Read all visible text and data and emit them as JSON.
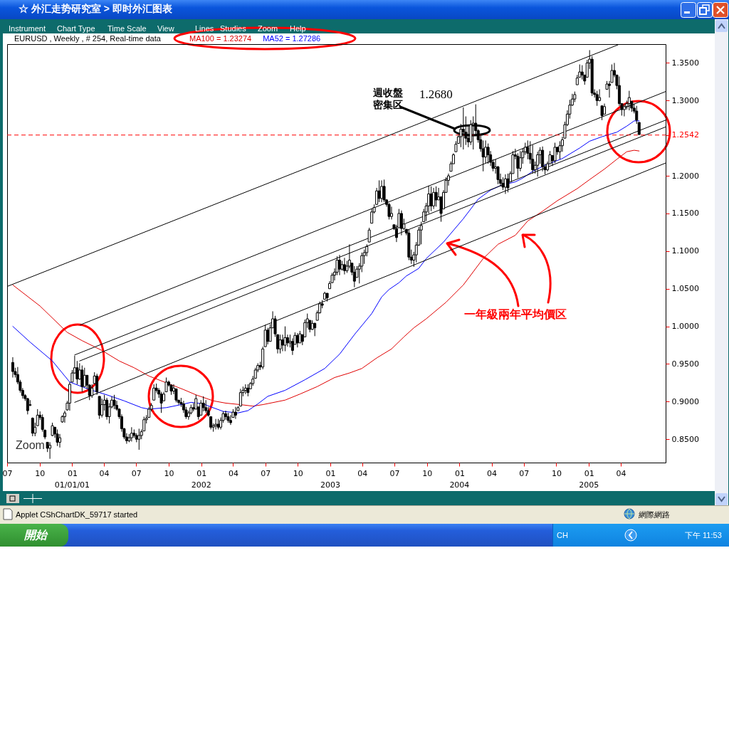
{
  "chart_data": {
    "type": "candlestick",
    "title": "EURUSD , Weekly , # 254, Real-time data",
    "color": "#000000",
    "x": [
      "2000-07-17",
      "2000-07-24",
      "2000-07-31",
      "2000-08-07",
      "2000-08-14",
      "2000-08-21",
      "2000-08-28",
      "2000-09-04",
      "2000-09-11",
      "2000-09-18",
      "2000-09-25",
      "2000-10-02",
      "2000-10-09",
      "2000-10-16",
      "2000-10-23",
      "2000-10-30",
      "2000-11-06",
      "2000-11-13",
      "2000-11-20",
      "2000-11-27",
      "2000-12-04",
      "2000-12-11",
      "2000-12-18",
      "2000-12-25",
      "2001-01-01",
      "2001-01-08",
      "2001-01-15",
      "2001-01-22",
      "2001-01-29",
      "2001-02-05",
      "2001-02-12",
      "2001-02-19",
      "2001-02-26",
      "2001-03-05",
      "2001-03-12",
      "2001-03-19",
      "2001-03-26",
      "2001-04-02",
      "2001-04-09",
      "2001-04-16",
      "2001-04-23",
      "2001-04-30",
      "2001-05-07",
      "2001-05-14",
      "2001-05-21",
      "2001-05-28",
      "2001-06-04",
      "2001-06-11",
      "2001-06-18",
      "2001-06-25",
      "2001-07-02",
      "2001-07-09",
      "2001-07-16",
      "2001-07-23",
      "2001-07-30",
      "2001-08-06",
      "2001-08-13",
      "2001-08-20",
      "2001-08-27",
      "2001-09-03",
      "2001-09-10",
      "2001-09-17",
      "2001-09-24",
      "2001-10-01",
      "2001-10-08",
      "2001-10-15",
      "2001-10-22",
      "2001-10-29",
      "2001-11-05",
      "2001-11-12",
      "2001-11-19",
      "2001-11-26",
      "2001-12-03",
      "2001-12-10",
      "2001-12-17",
      "2001-12-24",
      "2001-12-31",
      "2002-01-07",
      "2002-01-14",
      "2002-01-21",
      "2002-01-28",
      "2002-02-04",
      "2002-02-11",
      "2002-02-18",
      "2002-02-25",
      "2002-03-04",
      "2002-03-11",
      "2002-03-18",
      "2002-03-25",
      "2002-04-01",
      "2002-04-08",
      "2002-04-15",
      "2002-04-22",
      "2002-04-29",
      "2002-05-06",
      "2002-05-13",
      "2002-05-20",
      "2002-05-27",
      "2002-06-03",
      "2002-06-10",
      "2002-06-17",
      "2002-06-24",
      "2002-07-01",
      "2002-07-08",
      "2002-07-15",
      "2002-07-22",
      "2002-07-29",
      "2002-08-05",
      "2002-08-12",
      "2002-08-19",
      "2002-08-26",
      "2002-09-02",
      "2002-09-09",
      "2002-09-16",
      "2002-09-23",
      "2002-09-30",
      "2002-10-07",
      "2002-10-14",
      "2002-10-21",
      "2002-10-28",
      "2002-11-04",
      "2002-11-11",
      "2002-11-18",
      "2002-11-25",
      "2002-12-02",
      "2002-12-09",
      "2002-12-16",
      "2002-12-23",
      "2002-12-30",
      "2003-01-06",
      "2003-01-13",
      "2003-01-20",
      "2003-01-27",
      "2003-02-03",
      "2003-02-10",
      "2003-02-17",
      "2003-02-24",
      "2003-03-03",
      "2003-03-10",
      "2003-03-17",
      "2003-03-24",
      "2003-03-31",
      "2003-04-07",
      "2003-04-14",
      "2003-04-21",
      "2003-04-28",
      "2003-05-05",
      "2003-05-12",
      "2003-05-19",
      "2003-05-26",
      "2003-06-02",
      "2003-06-09",
      "2003-06-16",
      "2003-06-23",
      "2003-06-30",
      "2003-07-07",
      "2003-07-14",
      "2003-07-21",
      "2003-07-28",
      "2003-08-04",
      "2003-08-11",
      "2003-08-18",
      "2003-08-25",
      "2003-09-01",
      "2003-09-08",
      "2003-09-15",
      "2003-09-22",
      "2003-09-29",
      "2003-10-06",
      "2003-10-13",
      "2003-10-20",
      "2003-10-27",
      "2003-11-03",
      "2003-11-10",
      "2003-11-17",
      "2003-11-24",
      "2003-12-01",
      "2003-12-08",
      "2003-12-15",
      "2003-12-22",
      "2003-12-29",
      "2004-01-05",
      "2004-01-12",
      "2004-01-19",
      "2004-01-26",
      "2004-02-02",
      "2004-02-09",
      "2004-02-16",
      "2004-02-23",
      "2004-03-01",
      "2004-03-08",
      "2004-03-15",
      "2004-03-22",
      "2004-03-29",
      "2004-04-05",
      "2004-04-12",
      "2004-04-19",
      "2004-04-26",
      "2004-05-03",
      "2004-05-10",
      "2004-05-17",
      "2004-05-24",
      "2004-05-31",
      "2004-06-07",
      "2004-06-14",
      "2004-06-21",
      "2004-06-28",
      "2004-07-05",
      "2004-07-12",
      "2004-07-19",
      "2004-07-26",
      "2004-08-02",
      "2004-08-09",
      "2004-08-16",
      "2004-08-23",
      "2004-08-30",
      "2004-09-06",
      "2004-09-13",
      "2004-09-20",
      "2004-09-27",
      "2004-10-04",
      "2004-10-11",
      "2004-10-18",
      "2004-10-25",
      "2004-11-01",
      "2004-11-08",
      "2004-11-15",
      "2004-11-22",
      "2004-11-29",
      "2004-12-06",
      "2004-12-13",
      "2004-12-20",
      "2004-12-27",
      "2005-01-03",
      "2005-01-10",
      "2005-01-17",
      "2005-01-24",
      "2005-01-31",
      "2005-02-07",
      "2005-02-14",
      "2005-02-21",
      "2005-02-28",
      "2005-03-07",
      "2005-03-14",
      "2005-03-21",
      "2005-03-28",
      "2005-04-04",
      "2005-04-11",
      "2005-04-18",
      "2005-04-25",
      "2005-05-02",
      "2005-05-09",
      "2005-05-16",
      "2005-05-23"
    ],
    "ohlc": [
      [
        0.952,
        0.959,
        0.932,
        0.94
      ],
      [
        0.94,
        0.945,
        0.932,
        0.936
      ],
      [
        0.936,
        0.946,
        0.923,
        0.926
      ],
      [
        0.926,
        0.929,
        0.912,
        0.915
      ],
      [
        0.915,
        0.918,
        0.904,
        0.908
      ],
      [
        0.908,
        0.91,
        0.901,
        0.904
      ],
      [
        0.904,
        0.905,
        0.883,
        0.888
      ],
      [
        0.895,
        0.902,
        0.894,
        0.896
      ],
      [
        0.878,
        0.879,
        0.854,
        0.858
      ],
      [
        0.858,
        0.872,
        0.854,
        0.866
      ],
      [
        0.868,
        0.89,
        0.868,
        0.882
      ],
      [
        0.882,
        0.887,
        0.876,
        0.879
      ],
      [
        0.879,
        0.883,
        0.86,
        0.863
      ],
      [
        0.862,
        0.863,
        0.85,
        0.853
      ],
      [
        0.846,
        0.846,
        0.833,
        0.838
      ],
      [
        0.838,
        0.846,
        0.824,
        0.842
      ],
      [
        0.855,
        0.872,
        0.854,
        0.868
      ],
      [
        0.866,
        0.866,
        0.852,
        0.857
      ],
      [
        0.857,
        0.863,
        0.841,
        0.846
      ],
      [
        0.846,
        0.857,
        0.839,
        0.852
      ],
      [
        0.873,
        0.882,
        0.872,
        0.88
      ],
      [
        0.88,
        0.888,
        0.872,
        0.885
      ],
      [
        0.889,
        0.901,
        0.888,
        0.898
      ],
      [
        0.898,
        0.926,
        0.888,
        0.923
      ],
      [
        0.926,
        0.942,
        0.926,
        0.938
      ],
      [
        0.938,
        0.961,
        0.937,
        0.945
      ],
      [
        0.945,
        0.954,
        0.923,
        0.93
      ],
      [
        0.93,
        0.951,
        0.929,
        0.942
      ],
      [
        0.942,
        0.948,
        0.913,
        0.92
      ],
      [
        0.92,
        0.945,
        0.92,
        0.935
      ],
      [
        0.935,
        0.935,
        0.917,
        0.922
      ],
      [
        0.922,
        0.923,
        0.902,
        0.908
      ],
      [
        0.908,
        0.923,
        0.905,
        0.918
      ],
      [
        0.924,
        0.939,
        0.923,
        0.934
      ],
      [
        0.934,
        0.937,
        0.909,
        0.913
      ],
      [
        0.907,
        0.907,
        0.877,
        0.882
      ],
      [
        0.882,
        0.904,
        0.879,
        0.896
      ],
      [
        0.896,
        0.909,
        0.888,
        0.902
      ],
      [
        0.902,
        0.905,
        0.876,
        0.88
      ],
      [
        0.88,
        0.898,
        0.871,
        0.893
      ],
      [
        0.893,
        0.907,
        0.891,
        0.902
      ],
      [
        0.902,
        0.909,
        0.89,
        0.895
      ],
      [
        0.895,
        0.901,
        0.888,
        0.89
      ],
      [
        0.89,
        0.891,
        0.877,
        0.88
      ],
      [
        0.88,
        0.883,
        0.86,
        0.864
      ],
      [
        0.864,
        0.865,
        0.85,
        0.853
      ],
      [
        0.853,
        0.858,
        0.844,
        0.848
      ],
      [
        0.848,
        0.857,
        0.846,
        0.852
      ],
      [
        0.852,
        0.866,
        0.847,
        0.858
      ],
      [
        0.858,
        0.863,
        0.852,
        0.855
      ],
      [
        0.855,
        0.858,
        0.846,
        0.85
      ],
      [
        0.85,
        0.864,
        0.836,
        0.855
      ],
      [
        0.855,
        0.863,
        0.85,
        0.86
      ],
      [
        0.861,
        0.88,
        0.861,
        0.876
      ],
      [
        0.876,
        0.882,
        0.871,
        0.878
      ],
      [
        0.879,
        0.893,
        0.879,
        0.89
      ],
      [
        0.89,
        0.898,
        0.887,
        0.895
      ],
      [
        0.902,
        0.923,
        0.902,
        0.918
      ],
      [
        0.918,
        0.924,
        0.912,
        0.915
      ],
      [
        0.915,
        0.918,
        0.905,
        0.91
      ],
      [
        0.91,
        0.913,
        0.885,
        0.898
      ],
      [
        0.901,
        0.913,
        0.901,
        0.91
      ],
      [
        0.913,
        0.932,
        0.913,
        0.926
      ],
      [
        0.926,
        0.928,
        0.92,
        0.922
      ],
      [
        0.922,
        0.923,
        0.909,
        0.914
      ],
      [
        0.914,
        0.923,
        0.91,
        0.918
      ],
      [
        0.917,
        0.917,
        0.899,
        0.902
      ],
      [
        0.902,
        0.902,
        0.896,
        0.899
      ],
      [
        0.899,
        0.905,
        0.893,
        0.897
      ],
      [
        0.897,
        0.901,
        0.885,
        0.889
      ],
      [
        0.889,
        0.893,
        0.877,
        0.88
      ],
      [
        0.88,
        0.888,
        0.876,
        0.885
      ],
      [
        0.885,
        0.896,
        0.883,
        0.892
      ],
      [
        0.892,
        0.898,
        0.887,
        0.89
      ],
      [
        0.89,
        0.909,
        0.89,
        0.904
      ],
      [
        0.893,
        0.893,
        0.876,
        0.88
      ],
      [
        0.882,
        0.902,
        0.882,
        0.898
      ],
      [
        0.898,
        0.907,
        0.887,
        0.892
      ],
      [
        0.892,
        0.902,
        0.885,
        0.888
      ],
      [
        0.888,
        0.893,
        0.88,
        0.882
      ],
      [
        0.88,
        0.88,
        0.863,
        0.866
      ],
      [
        0.866,
        0.871,
        0.86,
        0.868
      ],
      [
        0.868,
        0.877,
        0.863,
        0.87
      ],
      [
        0.87,
        0.877,
        0.863,
        0.866
      ],
      [
        0.866,
        0.879,
        0.863,
        0.875
      ],
      [
        0.875,
        0.887,
        0.872,
        0.884
      ],
      [
        0.884,
        0.888,
        0.876,
        0.88
      ],
      [
        0.88,
        0.885,
        0.872,
        0.875
      ],
      [
        0.875,
        0.882,
        0.869,
        0.872
      ],
      [
        0.879,
        0.89,
        0.879,
        0.886
      ],
      [
        0.886,
        0.893,
        0.877,
        0.882
      ],
      [
        0.888,
        0.894,
        0.888,
        0.892
      ],
      [
        0.894,
        0.917,
        0.894,
        0.912
      ],
      [
        0.912,
        0.92,
        0.907,
        0.915
      ],
      [
        0.915,
        0.923,
        0.91,
        0.918
      ],
      [
        0.918,
        0.923,
        0.907,
        0.912
      ],
      [
        0.917,
        0.926,
        0.917,
        0.924
      ],
      [
        0.924,
        0.934,
        0.921,
        0.93
      ],
      [
        0.931,
        0.945,
        0.931,
        0.942
      ],
      [
        0.942,
        0.951,
        0.939,
        0.948
      ],
      [
        0.948,
        0.953,
        0.942,
        0.946
      ],
      [
        0.946,
        0.973,
        0.943,
        0.97
      ],
      [
        0.973,
        1.002,
        0.973,
        0.995
      ],
      [
        0.995,
        0.998,
        0.976,
        0.98
      ],
      [
        0.98,
        1.003,
        0.98,
        0.998
      ],
      [
        0.998,
        1.02,
        0.998,
        1.01
      ],
      [
        1.01,
        1.014,
        0.986,
        0.99
      ],
      [
        0.989,
        0.989,
        0.964,
        0.97
      ],
      [
        0.97,
        0.989,
        0.964,
        0.982
      ],
      [
        0.982,
        0.989,
        0.967,
        0.975
      ],
      [
        0.975,
        1.0,
        0.967,
        0.985
      ],
      [
        0.985,
        0.989,
        0.973,
        0.978
      ],
      [
        0.978,
        0.989,
        0.972,
        0.98
      ],
      [
        0.98,
        0.984,
        0.962,
        0.968
      ],
      [
        0.976,
        0.992,
        0.976,
        0.988
      ],
      [
        0.988,
        0.991,
        0.972,
        0.978
      ],
      [
        0.978,
        0.994,
        0.978,
        0.99
      ],
      [
        0.989,
        0.989,
        0.975,
        0.98
      ],
      [
        0.986,
        1.009,
        0.986,
        1.005
      ],
      [
        1.005,
        1.017,
        0.998,
        1.01
      ],
      [
        1.008,
        1.008,
        0.992,
        0.996
      ],
      [
        0.996,
        1.008,
        0.995,
        1.004
      ],
      [
        1.004,
        1.005,
        0.987,
        0.998
      ],
      [
        1.008,
        1.021,
        1.008,
        1.018
      ],
      [
        1.018,
        1.033,
        1.017,
        1.03
      ],
      [
        1.03,
        1.035,
        1.024,
        1.028
      ],
      [
        1.036,
        1.046,
        1.036,
        1.044
      ],
      [
        1.044,
        1.044,
        1.033,
        1.038
      ],
      [
        1.05,
        1.06,
        1.05,
        1.057
      ],
      [
        1.058,
        1.071,
        1.058,
        1.068
      ],
      [
        1.068,
        1.077,
        1.061,
        1.072
      ],
      [
        1.072,
        1.093,
        1.068,
        1.088
      ],
      [
        1.088,
        1.095,
        1.068,
        1.076
      ],
      [
        1.076,
        1.087,
        1.074,
        1.082
      ],
      [
        1.082,
        1.091,
        1.069,
        1.074
      ],
      [
        1.074,
        1.087,
        1.071,
        1.08
      ],
      [
        1.08,
        1.109,
        1.077,
        1.088
      ],
      [
        1.084,
        1.084,
        1.068,
        1.072
      ],
      [
        1.072,
        1.08,
        1.052,
        1.06
      ],
      [
        1.065,
        1.08,
        1.065,
        1.076
      ],
      [
        1.076,
        1.084,
        1.057,
        1.08
      ],
      [
        1.08,
        1.098,
        1.072,
        1.094
      ],
      [
        1.094,
        1.102,
        1.083,
        1.098
      ],
      [
        1.098,
        1.109,
        1.093,
        1.106
      ],
      [
        1.112,
        1.131,
        1.112,
        1.128
      ],
      [
        1.137,
        1.156,
        1.137,
        1.152
      ],
      [
        1.152,
        1.162,
        1.15,
        1.158
      ],
      [
        1.162,
        1.184,
        1.162,
        1.18
      ],
      [
        1.18,
        1.194,
        1.165,
        1.17
      ],
      [
        1.17,
        1.194,
        1.165,
        1.186
      ],
      [
        1.186,
        1.195,
        1.165,
        1.168
      ],
      [
        1.168,
        1.169,
        1.159,
        1.162
      ],
      [
        1.162,
        1.164,
        1.142,
        1.146
      ],
      [
        1.146,
        1.159,
        1.142,
        1.15
      ],
      [
        1.135,
        1.135,
        1.128,
        1.13
      ],
      [
        1.13,
        1.135,
        1.112,
        1.118
      ],
      [
        1.131,
        1.156,
        1.131,
        1.15
      ],
      [
        1.15,
        1.154,
        1.121,
        1.13
      ],
      [
        1.13,
        1.143,
        1.128,
        1.136
      ],
      [
        1.129,
        1.129,
        1.121,
        1.124
      ],
      [
        1.124,
        1.129,
        1.088,
        1.092
      ],
      [
        1.092,
        1.102,
        1.083,
        1.088
      ],
      [
        1.088,
        1.099,
        1.079,
        1.095
      ],
      [
        1.095,
        1.112,
        1.085,
        1.108
      ],
      [
        1.108,
        1.132,
        1.107,
        1.128
      ],
      [
        1.128,
        1.139,
        1.109,
        1.134
      ],
      [
        1.139,
        1.156,
        1.139,
        1.152
      ],
      [
        1.152,
        1.164,
        1.14,
        1.16
      ],
      [
        1.16,
        1.187,
        1.15,
        1.176
      ],
      [
        1.176,
        1.186,
        1.153,
        1.16
      ],
      [
        1.16,
        1.184,
        1.156,
        1.178
      ],
      [
        1.178,
        1.186,
        1.159,
        1.168
      ],
      [
        1.168,
        1.184,
        1.168,
        1.172
      ],
      [
        1.172,
        1.172,
        1.139,
        1.15
      ],
      [
        1.156,
        1.181,
        1.156,
        1.178
      ],
      [
        1.178,
        1.198,
        1.178,
        1.194
      ],
      [
        1.194,
        1.203,
        1.187,
        1.2
      ],
      [
        1.206,
        1.219,
        1.206,
        1.216
      ],
      [
        1.216,
        1.23,
        1.216,
        1.228
      ],
      [
        1.232,
        1.246,
        1.232,
        1.242
      ],
      [
        1.243,
        1.254,
        1.243,
        1.252
      ],
      [
        1.252,
        1.269,
        1.238,
        1.262
      ],
      [
        1.262,
        1.291,
        1.235,
        1.258
      ],
      [
        1.258,
        1.279,
        1.241,
        1.25
      ],
      [
        1.25,
        1.266,
        1.238,
        1.245
      ],
      [
        1.245,
        1.274,
        1.241,
        1.268
      ],
      [
        1.268,
        1.279,
        1.235,
        1.27
      ],
      [
        1.27,
        1.295,
        1.255,
        1.26
      ],
      [
        1.26,
        1.262,
        1.244,
        1.248
      ],
      [
        1.248,
        1.255,
        1.232,
        1.236
      ],
      [
        1.236,
        1.247,
        1.206,
        1.225
      ],
      [
        1.225,
        1.247,
        1.217,
        1.238
      ],
      [
        1.238,
        1.243,
        1.216,
        1.228
      ],
      [
        1.228,
        1.233,
        1.213,
        1.218
      ],
      [
        1.218,
        1.222,
        1.206,
        1.21
      ],
      [
        1.21,
        1.222,
        1.203,
        1.212
      ],
      [
        1.212,
        1.213,
        1.189,
        1.195
      ],
      [
        1.195,
        1.203,
        1.186,
        1.19
      ],
      [
        1.19,
        1.198,
        1.181,
        1.185
      ],
      [
        1.185,
        1.202,
        1.176,
        1.196
      ],
      [
        1.196,
        1.203,
        1.178,
        1.184
      ],
      [
        1.192,
        1.206,
        1.192,
        1.203
      ],
      [
        1.203,
        1.233,
        1.203,
        1.228
      ],
      [
        1.228,
        1.236,
        1.222,
        1.226
      ],
      [
        1.226,
        1.23,
        1.197,
        1.21
      ],
      [
        1.21,
        1.233,
        1.206,
        1.224
      ],
      [
        1.224,
        1.236,
        1.216,
        1.232
      ],
      [
        1.232,
        1.244,
        1.228,
        1.238
      ],
      [
        1.238,
        1.247,
        1.222,
        1.23
      ],
      [
        1.23,
        1.246,
        1.216,
        1.222
      ],
      [
        1.222,
        1.241,
        1.203,
        1.208
      ],
      [
        1.208,
        1.219,
        1.203,
        1.214
      ],
      [
        1.214,
        1.232,
        1.199,
        1.228
      ],
      [
        1.228,
        1.238,
        1.216,
        1.234
      ],
      [
        1.234,
        1.239,
        1.206,
        1.212
      ],
      [
        1.212,
        1.216,
        1.202,
        1.208
      ],
      [
        1.208,
        1.219,
        1.206,
        1.216
      ],
      [
        1.216,
        1.233,
        1.216,
        1.228
      ],
      [
        1.227,
        1.227,
        1.213,
        1.22
      ],
      [
        1.22,
        1.244,
        1.217,
        1.238
      ],
      [
        1.238,
        1.238,
        1.228,
        1.232
      ],
      [
        1.232,
        1.246,
        1.222,
        1.24
      ],
      [
        1.24,
        1.252,
        1.232,
        1.248
      ],
      [
        1.25,
        1.272,
        1.25,
        1.268
      ],
      [
        1.268,
        1.287,
        1.266,
        1.282
      ],
      [
        1.282,
        1.301,
        1.276,
        1.294
      ],
      [
        1.294,
        1.309,
        1.293,
        1.302
      ],
      [
        1.302,
        1.312,
        1.298,
        1.308
      ],
      [
        1.321,
        1.334,
        1.321,
        1.33
      ],
      [
        1.331,
        1.348,
        1.331,
        1.338
      ],
      [
        1.338,
        1.347,
        1.328,
        1.334
      ],
      [
        1.334,
        1.334,
        1.321,
        1.326
      ],
      [
        1.331,
        1.354,
        1.331,
        1.35
      ],
      [
        1.35,
        1.367,
        1.342,
        1.355
      ],
      [
        1.355,
        1.359,
        1.306,
        1.31
      ],
      [
        1.31,
        1.315,
        1.304,
        1.308
      ],
      [
        1.308,
        1.313,
        1.293,
        1.3
      ],
      [
        1.3,
        1.315,
        1.299,
        1.304
      ],
      [
        1.293,
        1.293,
        1.274,
        1.28
      ],
      [
        1.282,
        1.296,
        1.282,
        1.292
      ],
      [
        1.315,
        1.326,
        1.315,
        1.322
      ],
      [
        1.322,
        1.326,
        1.304,
        1.32
      ],
      [
        1.324,
        1.348,
        1.324,
        1.34
      ],
      [
        1.34,
        1.35,
        1.331,
        1.334
      ],
      [
        1.334,
        1.334,
        1.315,
        1.32
      ],
      [
        1.32,
        1.332,
        1.293,
        1.296
      ],
      [
        1.296,
        1.296,
        1.28,
        1.288
      ],
      [
        1.288,
        1.295,
        1.279,
        1.292
      ],
      [
        1.292,
        1.3,
        1.288,
        1.296
      ],
      [
        1.296,
        1.313,
        1.287,
        1.304
      ],
      [
        1.299,
        1.299,
        1.285,
        1.29
      ],
      [
        1.29,
        1.296,
        1.283,
        1.286
      ],
      [
        1.286,
        1.293,
        1.269,
        1.274
      ],
      [
        1.271,
        1.271,
        1.254,
        1.255
      ]
    ],
    "series": [
      {
        "name": "MA100 = 1.23274",
        "type": "line",
        "color": "#e00000",
        "x": [
          "2000-07-17",
          "2000-10-02",
          "2000-12-18",
          "2001-01-29",
          "2001-03-26",
          "2001-05-14",
          "2001-06-25",
          "2001-08-06",
          "2001-09-24",
          "2001-11-12",
          "2001-12-17",
          "2002-02-04",
          "2002-03-11",
          "2002-04-22",
          "2002-05-27",
          "2002-06-24",
          "2002-08-26",
          "2002-10-07",
          "2002-11-25",
          "2003-01-13",
          "2003-02-24",
          "2003-03-31",
          "2003-05-12",
          "2003-06-23",
          "2003-07-28",
          "2003-08-25",
          "2003-09-29",
          "2003-11-24",
          "2004-01-12",
          "2004-03-08",
          "2004-04-19",
          "2004-06-07",
          "2004-07-12",
          "2004-08-23",
          "2004-10-04",
          "2004-11-29",
          "2005-01-03",
          "2005-02-14",
          "2005-03-21",
          "2005-04-18",
          "2005-05-09",
          "2005-05-23"
        ],
        "values": [
          1.055,
          1.027,
          0.992,
          0.981,
          0.968,
          0.954,
          0.945,
          0.934,
          0.925,
          0.916,
          0.909,
          0.901,
          0.898,
          0.896,
          0.894,
          0.896,
          0.902,
          0.91,
          0.92,
          0.932,
          0.938,
          0.944,
          0.958,
          0.97,
          0.986,
          0.998,
          1.01,
          1.032,
          1.055,
          1.09,
          1.109,
          1.121,
          1.14,
          1.153,
          1.167,
          1.183,
          1.195,
          1.209,
          1.222,
          1.232,
          1.234,
          1.233
        ]
      },
      {
        "name": "MA52 = 1.27286",
        "type": "line",
        "color": "#0000ff",
        "x": [
          "2000-07-17",
          "2000-09-04",
          "2000-11-06",
          "2000-12-25",
          "2001-02-19",
          "2001-04-09",
          "2001-05-28",
          "2001-07-16",
          "2001-08-06",
          "2001-09-24",
          "2001-11-05",
          "2001-12-03",
          "2002-01-07",
          "2002-01-28",
          "2002-03-04",
          "2002-04-15",
          "2002-05-13",
          "2002-06-10",
          "2002-07-08",
          "2002-08-26",
          "2002-10-21",
          "2002-12-16",
          "2003-01-27",
          "2003-03-10",
          "2003-04-28",
          "2003-05-26",
          "2003-06-16",
          "2003-07-14",
          "2003-08-04",
          "2003-09-08",
          "2003-09-29",
          "2003-11-17",
          "2004-01-12",
          "2004-02-23",
          "2004-03-29",
          "2004-04-26",
          "2004-06-07",
          "2004-06-28",
          "2004-07-26",
          "2004-08-30",
          "2004-10-18",
          "2004-12-06",
          "2005-01-03",
          "2005-02-07",
          "2005-03-21",
          "2005-04-18",
          "2005-05-09",
          "2005-05-23"
        ],
        "values": [
          1.0,
          0.979,
          0.954,
          0.926,
          0.916,
          0.909,
          0.901,
          0.892,
          0.89,
          0.892,
          0.896,
          0.899,
          0.897,
          0.893,
          0.887,
          0.885,
          0.888,
          0.897,
          0.907,
          0.915,
          0.929,
          0.944,
          0.963,
          0.989,
          1.017,
          1.039,
          1.049,
          1.058,
          1.067,
          1.077,
          1.09,
          1.112,
          1.143,
          1.169,
          1.181,
          1.187,
          1.192,
          1.197,
          1.206,
          1.214,
          1.223,
          1.237,
          1.246,
          1.252,
          1.258,
          1.266,
          1.273,
          1.273
        ]
      },
      {
        "type": "line",
        "color": "#000000",
        "x": [
          "2000-07-01",
          "2005-03-24"
        ],
        "values": [
          1.053,
          1.374
        ]
      },
      {
        "type": "line",
        "color": "#000000",
        "x": [
          "2001-01-24",
          "2005-08-06"
        ],
        "values": [
          1.002,
          1.312
        ]
      },
      {
        "type": "line",
        "color": "#000000",
        "x": [
          "2001-01-08",
          "2005-08-06"
        ],
        "values": [
          0.962,
          1.274
        ]
      },
      {
        "type": "line",
        "color": "#000000",
        "x": [
          "2001-01-22",
          "2005-08-06"
        ],
        "values": [
          0.954,
          1.265
        ]
      },
      {
        "type": "line",
        "color": "#000000",
        "x": [
          "2001-01-08",
          "2005-08-06"
        ],
        "values": [
          0.899,
          1.217
        ]
      }
    ],
    "xlim": [
      "2000-07-01",
      "2005-08-06"
    ],
    "ylim": [
      0.819,
      1.375
    ],
    "xticks": [
      {
        "value": "2000-07-01",
        "label": "07"
      },
      {
        "value": "2000-10-01",
        "label": "10"
      },
      {
        "value": "2001-01-01",
        "label": "01"
      },
      {
        "value": "2001-04-01",
        "label": "04"
      },
      {
        "value": "2001-07-01",
        "label": "07"
      },
      {
        "value": "2001-10-01",
        "label": "10"
      },
      {
        "value": "2002-01-01",
        "label": "01"
      },
      {
        "value": "2002-04-01",
        "label": "04"
      },
      {
        "value": "2002-07-01",
        "label": "07"
      },
      {
        "value": "2002-10-01",
        "label": "10"
      },
      {
        "value": "2003-01-01",
        "label": "01"
      },
      {
        "value": "2003-04-01",
        "label": "04"
      },
      {
        "value": "2003-07-01",
        "label": "07"
      },
      {
        "value": "2003-10-01",
        "label": "10"
      },
      {
        "value": "2004-01-01",
        "label": "01"
      },
      {
        "value": "2004-04-01",
        "label": "04"
      },
      {
        "value": "2004-07-01",
        "label": "07"
      },
      {
        "value": "2004-10-01",
        "label": "10"
      },
      {
        "value": "2005-01-01",
        "label": "01"
      },
      {
        "value": "2005-04-01",
        "label": "04"
      }
    ],
    "yticks": [
      {
        "value": 0.85,
        "label": "0.8500"
      },
      {
        "value": 0.9,
        "label": "0.9000"
      },
      {
        "value": 0.95,
        "label": "0.9500"
      },
      {
        "value": 1,
        "label": "1.0000"
      },
      {
        "value": 1.05,
        "label": "1.0500"
      },
      {
        "value": 1.1,
        "label": "1.1000"
      },
      {
        "value": 1.15,
        "label": "1.1500"
      },
      {
        "value": 1.2,
        "label": "1.2000"
      },
      {
        "value": 1.2542,
        "label": "1.2542"
      },
      {
        "value": 1.3,
        "label": "1.3000"
      },
      {
        "value": 1.35,
        "label": "1.3500"
      }
    ],
    "ref_lines": [
      {
        "axis": "y",
        "value": 1.2542,
        "color": "#ff0000",
        "line_style": "dashed"
      }
    ],
    "annotations": [
      "Zoom",
      "週收盤",
      "密集区",
      "1.2680",
      "一年級兩年平均價区",
      "01/01/01",
      "2002",
      "2003",
      "2004",
      "2005",
      "☆ 外汇走势研究室 > 即时外汇图表",
      "Instrument",
      "Chart Type",
      "Time Scale",
      "View",
      "Lines",
      "Studies",
      "Zoom",
      "Help",
      "Applet CShChartDK_59717 started",
      "網際網路",
      "開始",
      "CH",
      "下午 11:53"
    ],
    "legend": "top left",
    "grid": false
  }
}
